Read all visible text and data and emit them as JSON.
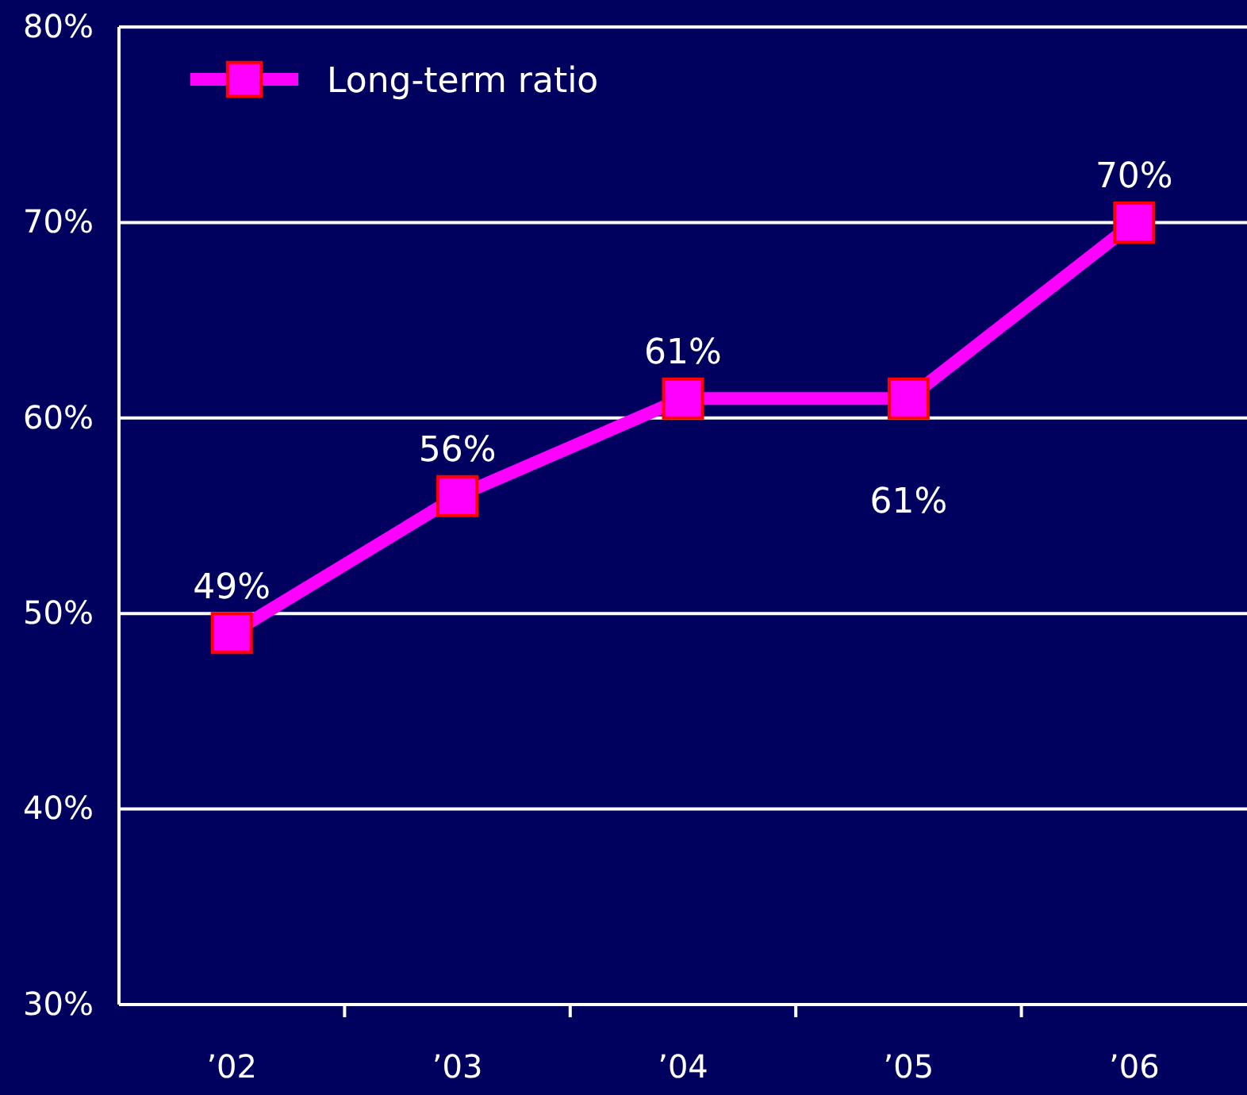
{
  "chart_data": {
    "type": "line",
    "categories": [
      "’02",
      "’03",
      "’04",
      "’05",
      "’06"
    ],
    "series": [
      {
        "name": "Long-term ratio",
        "color": "#ff00ff",
        "values": [
          49,
          56,
          61,
          61,
          70
        ],
        "value_labels": [
          "49%",
          "56%",
          "61%",
          "61%",
          "70%"
        ]
      }
    ],
    "ylim": [
      30,
      80
    ],
    "yticks": [
      {
        "value": 30,
        "label": "30%"
      },
      {
        "value": 40,
        "label": "40%"
      },
      {
        "value": 50,
        "label": "50%"
      },
      {
        "value": 60,
        "label": "60%"
      },
      {
        "value": 70,
        "label": "70%"
      },
      {
        "value": 80,
        "label": "80%"
      }
    ],
    "grid": "y",
    "legend": "top left",
    "marker": "square",
    "line_style": "solid"
  }
}
